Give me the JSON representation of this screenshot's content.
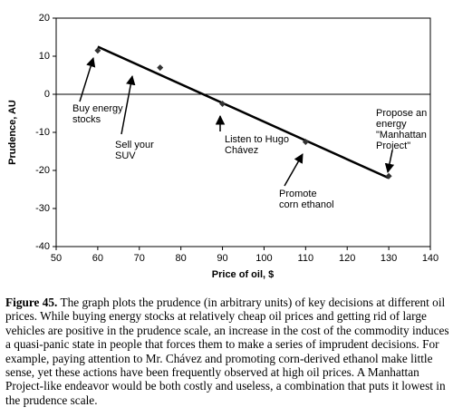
{
  "chart_data": {
    "type": "scatter",
    "xlabel": "Price of oil, $",
    "ylabel": "Prudence, AU",
    "x": [
      60,
      75,
      90,
      110,
      130
    ],
    "series": [
      {
        "color": "#333333",
        "values": [
          11.5,
          7,
          -2.5,
          -12.5,
          -21.5
        ]
      }
    ],
    "trendline": {
      "x": [
        60,
        130
      ],
      "y": [
        12.5,
        -22
      ],
      "color": "#000000"
    },
    "xlim": [
      50,
      140
    ],
    "xticks": [
      50,
      60,
      70,
      80,
      90,
      100,
      110,
      120,
      130,
      140
    ],
    "ylim": [
      -40,
      20
    ],
    "yticks": [
      -40,
      -30,
      -20,
      -10,
      0,
      10,
      20
    ],
    "annotations": [
      {
        "lines": [
          "Buy energy",
          "stocks"
        ]
      },
      {
        "lines": [
          "Sell your",
          "SUV"
        ]
      },
      {
        "lines": [
          "Listen to Hugo",
          "Chávez"
        ]
      },
      {
        "lines": [
          "Promote",
          "corn ethanol"
        ]
      },
      {
        "lines": [
          "Propose an",
          "energy",
          "\"Manhattan",
          "Project\""
        ]
      }
    ]
  },
  "caption": {
    "label": "Figure 45.",
    "text": "The graph plots the prudence (in arbitrary units) of key decisions at different oil prices. While buying energy stocks at relatively cheap oil prices and getting rid of large vehicles are positive in the prudence scale, an increase in the cost of the commodity induces a quasi-panic state in people that forces them to make a series of imprudent decisions. For example, paying attention to Mr. Chávez and promoting corn-derived ethanol make little sense, yet these actions have been frequently observed at high oil prices. A Manhattan Project-like endeavor would be both costly and useless, a combination that puts it lowest in the prudence scale."
  }
}
